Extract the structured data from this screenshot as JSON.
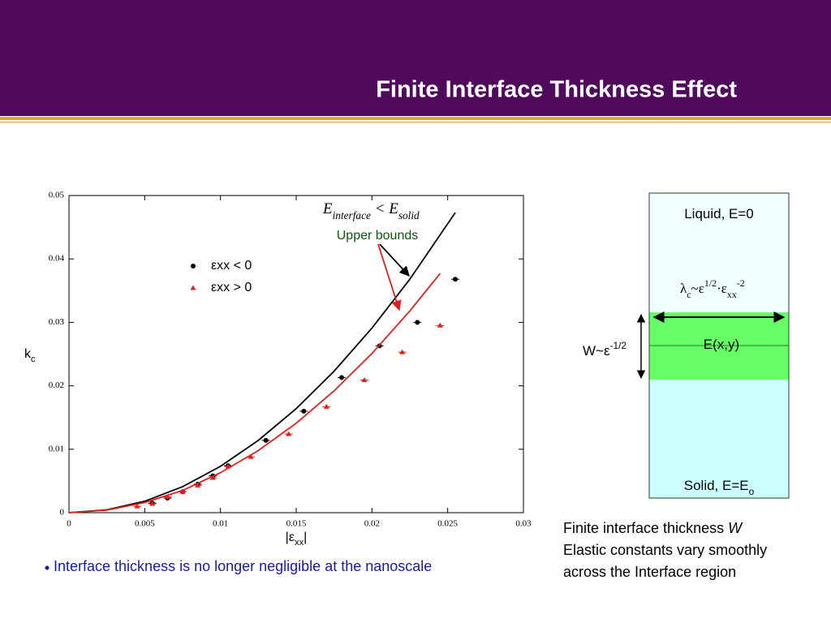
{
  "title": "Finite Interface Thickness Effect",
  "bullet": "Interface thickness is no longer negligible at the nanoscale",
  "caption": [
    [
      {
        "text": "Finite interface thickness "
      },
      {
        "text": "W",
        "style": "italic"
      }
    ],
    [
      {
        "text": "Elastic constants vary smoothly"
      }
    ],
    [
      {
        "text": "across the Interface region"
      }
    ]
  ],
  "diagram": {
    "liquid": [
      {
        "text": "Liquid, E=0"
      }
    ],
    "lambda": [
      {
        "text": "λ"
      },
      {
        "text": "c",
        "pos": "sub"
      },
      {
        "text": "~ε"
      },
      {
        "text": "1/2",
        "pos": "super"
      },
      {
        "text": "·ε"
      },
      {
        "text": "xx",
        "pos": "sub"
      },
      {
        "text": "-2",
        "pos": "super"
      }
    ],
    "interface": [
      {
        "text": "E(x,y)"
      }
    ],
    "width": [
      {
        "text": "W~ε"
      },
      {
        "text": "-1/2",
        "pos": "super"
      }
    ],
    "solid": [
      {
        "text": "Solid, E=E"
      },
      {
        "text": "o",
        "pos": "sub"
      }
    ]
  },
  "chart_data": {
    "type": "scatter",
    "x_label": [
      {
        "text": "|ε"
      },
      {
        "text": "xx",
        "pos": "sub"
      },
      {
        "text": "|"
      }
    ],
    "y_label": [
      {
        "text": "k"
      },
      {
        "text": "c",
        "pos": "sub"
      }
    ],
    "annotations": {
      "formula": [
        {
          "text": "E"
        },
        {
          "text": "int",
          "pos": "sub"
        },
        {
          "text": "erface",
          "pos": "sub"
        },
        {
          "text": " < E"
        },
        {
          "text": "solid",
          "pos": "sub"
        }
      ],
      "bounds": "Upper bounds"
    },
    "xlim": [
      0,
      0.03
    ],
    "ylim": [
      0,
      0.05
    ],
    "xticks": [
      0,
      0.005,
      0.01,
      0.015,
      0.02,
      0.025,
      0.03
    ],
    "yticks": [
      0,
      0.01,
      0.02,
      0.03,
      0.04,
      0.05
    ],
    "series": [
      {
        "name": "εxx < 0",
        "type": "scatter",
        "marker": "circle",
        "color": "#000000",
        "x": [
          0.0055,
          0.0065,
          0.0075,
          0.0085,
          0.0095,
          0.0105,
          0.013,
          0.0155,
          0.018,
          0.0205,
          0.023,
          0.0255
        ],
        "values": [
          0.0015,
          0.0023,
          0.0033,
          0.0045,
          0.0058,
          0.0074,
          0.0114,
          0.016,
          0.0213,
          0.0263,
          0.03,
          0.0368
        ]
      },
      {
        "name": "εxx > 0",
        "type": "scatter",
        "marker": "triangle",
        "color": "#e02020",
        "x": [
          0.0045,
          0.0055,
          0.0065,
          0.0075,
          0.0085,
          0.0095,
          0.0105,
          0.012,
          0.0145,
          0.017,
          0.0195,
          0.022,
          0.0245
        ],
        "values": [
          0.001,
          0.0014,
          0.0025,
          0.0033,
          0.0043,
          0.0055,
          0.0073,
          0.0088,
          0.0124,
          0.0167,
          0.0209,
          0.0253,
          0.0295
        ]
      },
      {
        "type": "line",
        "color": "#000000",
        "x": [
          0,
          0.0025,
          0.005,
          0.0075,
          0.01,
          0.0125,
          0.015,
          0.0175,
          0.02,
          0.0225,
          0.0255
        ],
        "values": [
          0,
          0.00045,
          0.0018,
          0.0041,
          0.0073,
          0.0114,
          0.0164,
          0.0223,
          0.0291,
          0.0368,
          0.0473
        ]
      },
      {
        "type": "line",
        "color": "#e02020",
        "x": [
          0,
          0.0025,
          0.005,
          0.0075,
          0.01,
          0.0125,
          0.015,
          0.0175,
          0.02,
          0.0225,
          0.0245
        ],
        "values": [
          0,
          0.0004,
          0.0016,
          0.0035,
          0.0063,
          0.0098,
          0.0141,
          0.0192,
          0.0251,
          0.0318,
          0.0377
        ]
      }
    ]
  }
}
